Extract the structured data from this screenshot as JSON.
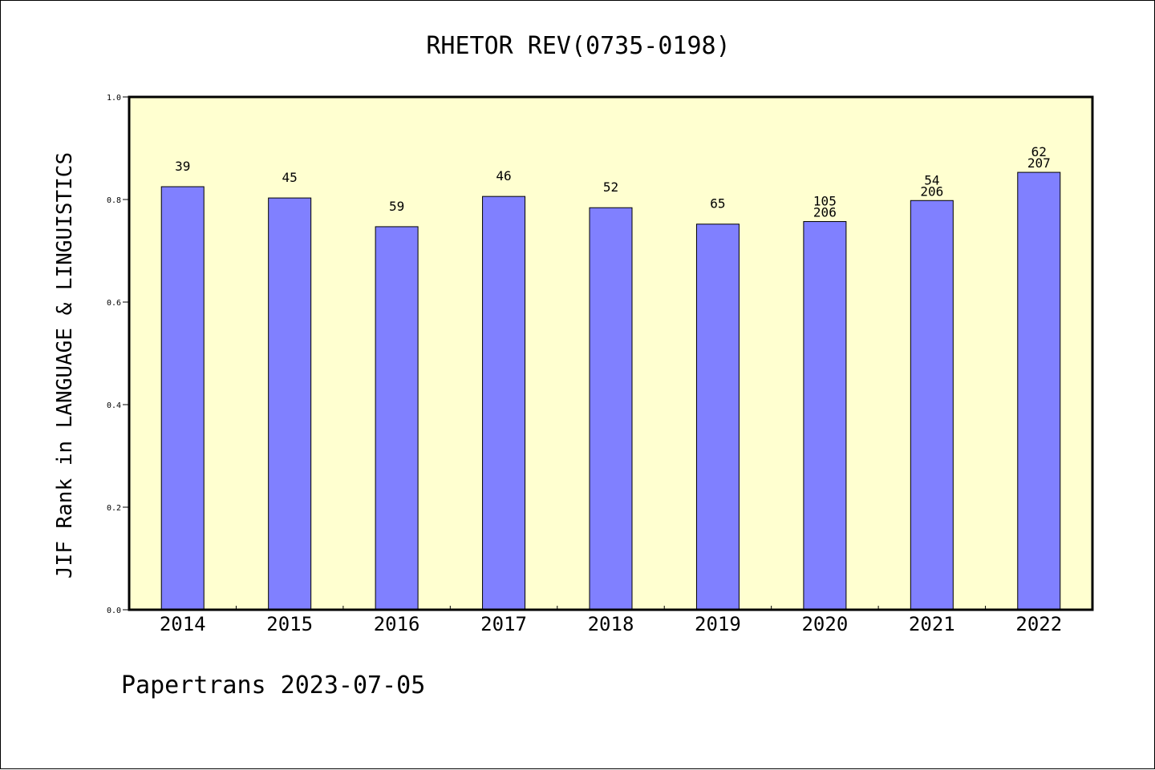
{
  "chart_data": {
    "type": "bar",
    "title": "RHETOR REV(0735-0198)",
    "xlabel": "",
    "ylabel": "JIF Rank in LANGUAGE & LINGUISTICS",
    "categories": [
      "2014",
      "2015",
      "2016",
      "2017",
      "2018",
      "2019",
      "2020",
      "2021",
      "2022"
    ],
    "values": [
      0.825,
      0.803,
      0.747,
      0.806,
      0.784,
      0.752,
      0.757,
      0.798,
      0.853
    ],
    "data_labels": [
      [
        "39"
      ],
      [
        "45"
      ],
      [
        "59"
      ],
      [
        "46"
      ],
      [
        "52"
      ],
      [
        "65"
      ],
      [
        "105",
        "206"
      ],
      [
        "54",
        "206"
      ],
      [
        "62",
        "207"
      ]
    ],
    "ylim": [
      0,
      1.0
    ],
    "yticks": [
      "0.0",
      "0.2",
      "0.4",
      "0.6",
      "0.8",
      "1.0"
    ],
    "grid": false,
    "colors": {
      "bar": "#8080ff",
      "plot_background": "#ffffd0",
      "axis": "#000000"
    }
  },
  "footer": "Papertrans 2023-07-05"
}
